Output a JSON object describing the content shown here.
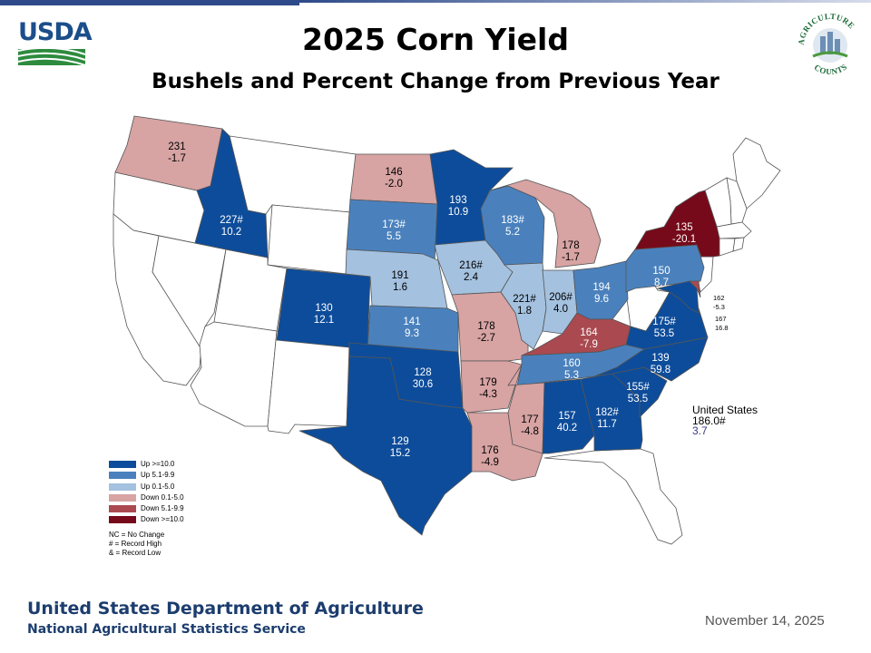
{
  "header": {
    "title": "2025 Corn Yield",
    "subtitle": "Bushels and Percent Change from Previous Year",
    "logo_left": "USDA",
    "logo_right_top": "AGRICULTURE",
    "logo_right_bottom": "COUNTS"
  },
  "colors": {
    "up_10": "#0d4c9a",
    "up_5": "#4a81bd",
    "up_0": "#a4c1df",
    "down_0": "#d7a3a3",
    "down_5": "#aa4950",
    "down_10": "#760a1a",
    "none": "#ffffff"
  },
  "states": {
    "WA": {
      "yield": "231",
      "change": "-1.7",
      "category": "down_0"
    },
    "ID": {
      "yield": "227#",
      "change": "10.2",
      "category": "up_10"
    },
    "ND": {
      "yield": "146",
      "change": "-2.0",
      "category": "down_0"
    },
    "SD": {
      "yield": "173#",
      "change": "5.5",
      "category": "up_5"
    },
    "NE": {
      "yield": "191",
      "change": "1.6",
      "category": "up_0"
    },
    "CO": {
      "yield": "130",
      "change": "12.1",
      "category": "up_10"
    },
    "KS": {
      "yield": "141",
      "change": "9.3",
      "category": "up_5"
    },
    "OK": {
      "yield": "128",
      "change": "30.6",
      "category": "up_10"
    },
    "TX": {
      "yield": "129",
      "change": "15.2",
      "category": "up_10"
    },
    "MN": {
      "yield": "193",
      "change": "10.9",
      "category": "up_10"
    },
    "IA": {
      "yield": "216#",
      "change": "2.4",
      "category": "up_0"
    },
    "MO": {
      "yield": "178",
      "change": "-2.7",
      "category": "down_0"
    },
    "AR": {
      "yield": "179",
      "change": "-4.3",
      "category": "down_0"
    },
    "LA": {
      "yield": "176",
      "change": "-4.9",
      "category": "down_0"
    },
    "WI": {
      "yield": "183#",
      "change": "5.2",
      "category": "up_5"
    },
    "IL": {
      "yield": "221#",
      "change": "1.8",
      "category": "up_0"
    },
    "MI": {
      "yield": "178",
      "change": "-1.7",
      "category": "down_0"
    },
    "IN": {
      "yield": "206#",
      "change": "4.0",
      "category": "up_0"
    },
    "OH": {
      "yield": "194",
      "change": "9.6",
      "category": "up_5"
    },
    "KY": {
      "yield": "164",
      "change": "-7.9",
      "category": "down_5"
    },
    "TN": {
      "yield": "160",
      "change": "5.3",
      "category": "up_5"
    },
    "MS": {
      "yield": "177",
      "change": "-4.8",
      "category": "down_0"
    },
    "AL": {
      "yield": "157",
      "change": "40.2",
      "category": "up_10"
    },
    "GA": {
      "yield": "182#",
      "change": "11.7",
      "category": "up_10"
    },
    "SC": {
      "yield": "155#",
      "change": "53.5",
      "category": "up_10"
    },
    "NC": {
      "yield": "139",
      "change": "59.8",
      "category": "up_10"
    },
    "VA": {
      "yield": "175#",
      "change": "53.5",
      "category": "up_10"
    },
    "PA": {
      "yield": "150",
      "change": "8.7",
      "category": "up_5"
    },
    "NY": {
      "yield": "135",
      "change": "-20.1",
      "category": "down_10"
    },
    "DE": {
      "yield": "162",
      "change": "-5.3",
      "category": "down_5"
    },
    "MD": {
      "yield": "167",
      "change": "16.8",
      "category": "up_10"
    }
  },
  "legend": {
    "items": [
      {
        "label": "Up >=10.0",
        "category": "up_10"
      },
      {
        "label": "Up 5.1-9.9",
        "category": "up_5"
      },
      {
        "label": "Up 0.1-5.0",
        "category": "up_0"
      },
      {
        "label": "Down 0.1-5.0",
        "category": "down_0"
      },
      {
        "label": "Down 5.1-9.9",
        "category": "down_5"
      },
      {
        "label": "Down >=10.0",
        "category": "down_10"
      }
    ],
    "notes": [
      "NC = No Change",
      "# = Record High",
      "& = Record Low"
    ]
  },
  "us_total": {
    "label": "United States",
    "yield": "186.0#",
    "change": "3.7"
  },
  "footer": {
    "org": "United States Department of Agriculture",
    "sub": "National Agricultural Statistics Service",
    "date": "November 14, 2025"
  }
}
